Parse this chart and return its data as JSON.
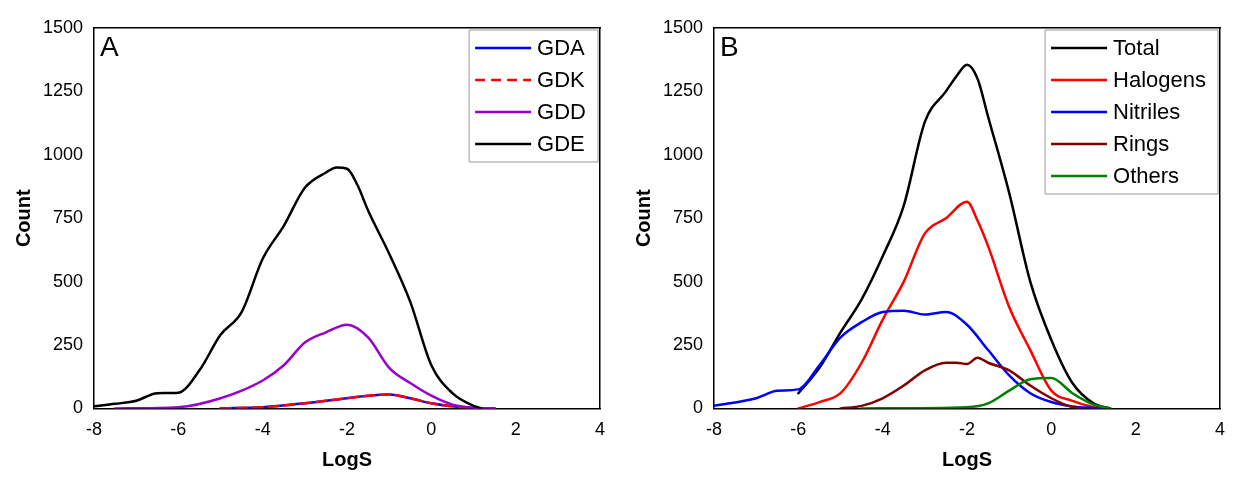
{
  "chart_data": [
    {
      "type": "line",
      "annotations": [
        "A"
      ],
      "xlabel": "LogS",
      "ylabel": "Count",
      "xlim": [
        -8,
        4
      ],
      "xticks": [
        -8,
        -6,
        -4,
        -2,
        0,
        2,
        4
      ],
      "ylim": [
        0,
        1500
      ],
      "yticks": [
        0,
        250,
        500,
        750,
        1000,
        1250,
        1500
      ],
      "grid": false,
      "legend": "top right",
      "marker": "none",
      "series": [
        {
          "name": "GDA",
          "color": "#0000ff",
          "line_style": "solid",
          "x": [
            -5,
            -4,
            -3,
            -2,
            -1.5,
            -1,
            -0.5,
            0,
            0.5,
            1,
            1.5
          ],
          "values": [
            0,
            5,
            20,
            40,
            50,
            55,
            40,
            20,
            8,
            2,
            0
          ]
        },
        {
          "name": "GDK",
          "color": "#ff0000",
          "line_style": "dashed",
          "x": [
            -5,
            -4,
            -3,
            -2,
            -1.5,
            -1,
            -0.5,
            0,
            0.5,
            1,
            1.5
          ],
          "values": [
            0,
            5,
            20,
            40,
            50,
            55,
            40,
            20,
            8,
            2,
            0
          ]
        },
        {
          "name": "GDD",
          "color": "#9900cc",
          "line_style": "solid",
          "x": [
            -7.5,
            -6,
            -5,
            -4,
            -3.5,
            -3,
            -2.5,
            -2,
            -1.5,
            -1,
            -0.5,
            0,
            0.5,
            1,
            1.5
          ],
          "values": [
            0,
            5,
            40,
            110,
            170,
            260,
            300,
            330,
            280,
            160,
            100,
            50,
            15,
            3,
            0
          ]
        },
        {
          "name": "GDE",
          "color": "#000000",
          "line_style": "solid",
          "x": [
            -8,
            -7.5,
            -7,
            -6.5,
            -6,
            -5.5,
            -5,
            -4.5,
            -4,
            -3.5,
            -3,
            -2.5,
            -2.25,
            -2,
            -1.75,
            -1.5,
            -1,
            -0.5,
            0,
            0.5,
            1,
            1.2
          ],
          "values": [
            8,
            18,
            30,
            60,
            62,
            150,
            290,
            380,
            590,
            720,
            870,
            930,
            950,
            945,
            880,
            780,
            610,
            420,
            170,
            60,
            10,
            0
          ]
        }
      ]
    },
    {
      "type": "line",
      "annotations": [
        "B"
      ],
      "xlabel": "LogS",
      "ylabel": "Count",
      "xlim": [
        -8,
        4
      ],
      "xticks": [
        -8,
        -6,
        -4,
        -2,
        0,
        2,
        4
      ],
      "ylim": [
        0,
        1500
      ],
      "yticks": [
        0,
        250,
        500,
        750,
        1000,
        1250,
        1500
      ],
      "grid": false,
      "legend": "top right",
      "marker": "none",
      "series": [
        {
          "name": "Total",
          "color": "#000000",
          "line_style": "solid",
          "x": [
            -6,
            -5.5,
            -5,
            -4.5,
            -4,
            -3.5,
            -3,
            -2.5,
            -2.25,
            -2,
            -1.75,
            -1.5,
            -1,
            -0.5,
            0,
            0.5,
            1,
            1.4
          ],
          "values": [
            60,
            160,
            300,
            430,
            600,
            800,
            1130,
            1250,
            1310,
            1355,
            1300,
            1150,
            850,
            500,
            270,
            100,
            20,
            0
          ]
        },
        {
          "name": "Halogens",
          "color": "#ff0000",
          "line_style": "solid",
          "x": [
            -6,
            -5.5,
            -5,
            -4.5,
            -4,
            -3.5,
            -3,
            -2.5,
            -2,
            -1.75,
            -1.5,
            -1,
            -0.5,
            0,
            0.5,
            1,
            1.2
          ],
          "values": [
            0,
            25,
            60,
            180,
            350,
            500,
            690,
            750,
            815,
            740,
            640,
            400,
            230,
            70,
            30,
            5,
            0
          ]
        },
        {
          "name": "Nitriles",
          "color": "#0000ff",
          "line_style": "solid",
          "x": [
            -8,
            -7,
            -6.5,
            -6,
            -5.5,
            -5,
            -4.5,
            -4,
            -3.5,
            -3,
            -2.5,
            -2,
            -1.5,
            -1,
            -0.5,
            0,
            0.5,
            1,
            1.2
          ],
          "values": [
            10,
            40,
            70,
            75,
            170,
            280,
            340,
            380,
            385,
            370,
            380,
            330,
            230,
            130,
            60,
            25,
            8,
            2,
            0
          ]
        },
        {
          "name": "Rings",
          "color": "#800000",
          "line_style": "solid",
          "x": [
            -5,
            -4.5,
            -4,
            -3.5,
            -3,
            -2.5,
            -2.25,
            -2,
            -1.75,
            -1.5,
            -1,
            -0.5,
            0,
            0.5,
            0.8
          ],
          "values": [
            0,
            10,
            40,
            90,
            150,
            180,
            180,
            175,
            200,
            180,
            150,
            90,
            40,
            5,
            0
          ]
        },
        {
          "name": "Others",
          "color": "#008000",
          "line_style": "solid",
          "x": [
            -4.5,
            -2,
            -1.5,
            -1,
            -0.5,
            0,
            0.5,
            1,
            1.4
          ],
          "values": [
            0,
            5,
            20,
            70,
            115,
            120,
            60,
            15,
            0
          ]
        }
      ]
    }
  ]
}
